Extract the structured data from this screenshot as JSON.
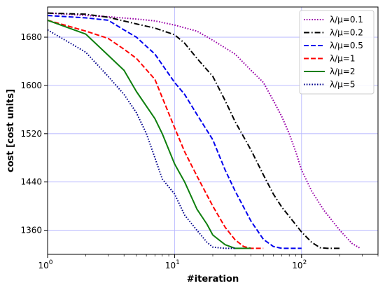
{
  "chart_data": {
    "type": "line",
    "title": "",
    "xlabel": "#iteration",
    "ylabel": "cost [cost units]",
    "x_scale": "log",
    "xlim": [
      1,
      400
    ],
    "ylim": [
      1320,
      1730
    ],
    "x_ticks": [
      {
        "value": 1,
        "base": "10",
        "exp": "0"
      },
      {
        "value": 10,
        "base": "10",
        "exp": "1"
      },
      {
        "value": 100,
        "base": "10",
        "exp": "2"
      }
    ],
    "y_ticks": [
      {
        "value": 1360,
        "label": "1360"
      },
      {
        "value": 1440,
        "label": "1440"
      },
      {
        "value": 1520,
        "label": "1520"
      },
      {
        "value": 1600,
        "label": "1600"
      },
      {
        "value": 1680,
        "label": "1680"
      }
    ],
    "grid": true,
    "legend_position": "top-right",
    "series": [
      {
        "name": "λ/μ=0.1",
        "color": "#9900a8",
        "dash": "dotted",
        "points": [
          [
            1,
            1720
          ],
          [
            2,
            1716
          ],
          [
            3,
            1714
          ],
          [
            5,
            1710
          ],
          [
            7,
            1707
          ],
          [
            10,
            1700
          ],
          [
            15,
            1690
          ],
          [
            20,
            1675
          ],
          [
            30,
            1652
          ],
          [
            40,
            1625
          ],
          [
            50,
            1605
          ],
          [
            60,
            1575
          ],
          [
            70,
            1548
          ],
          [
            80,
            1520
          ],
          [
            90,
            1490
          ],
          [
            100,
            1460
          ],
          [
            120,
            1425
          ],
          [
            150,
            1393
          ],
          [
            200,
            1360
          ],
          [
            250,
            1338
          ],
          [
            290,
            1330
          ]
        ]
      },
      {
        "name": "λ/μ=0.2",
        "color": "#000000",
        "dash": "dashdot",
        "points": [
          [
            1,
            1720
          ],
          [
            2,
            1718
          ],
          [
            3,
            1713
          ],
          [
            5,
            1702
          ],
          [
            7,
            1695
          ],
          [
            10,
            1684
          ],
          [
            12,
            1670
          ],
          [
            15,
            1645
          ],
          [
            20,
            1615
          ],
          [
            25,
            1575
          ],
          [
            30,
            1540
          ],
          [
            40,
            1493
          ],
          [
            50,
            1452
          ],
          [
            60,
            1420
          ],
          [
            70,
            1398
          ],
          [
            80,
            1383
          ],
          [
            100,
            1357
          ],
          [
            120,
            1340
          ],
          [
            140,
            1331
          ],
          [
            160,
            1330
          ],
          [
            200,
            1330
          ]
        ]
      },
      {
        "name": "λ/μ=0.5",
        "color": "#0000ee",
        "dash": "dashed",
        "points": [
          [
            1,
            1716
          ],
          [
            2,
            1712
          ],
          [
            3,
            1708
          ],
          [
            4,
            1692
          ],
          [
            5,
            1680
          ],
          [
            7,
            1652
          ],
          [
            10,
            1605
          ],
          [
            12,
            1585
          ],
          [
            15,
            1552
          ],
          [
            20,
            1510
          ],
          [
            25,
            1460
          ],
          [
            30,
            1425
          ],
          [
            40,
            1375
          ],
          [
            50,
            1345
          ],
          [
            60,
            1333
          ],
          [
            70,
            1330
          ],
          [
            100,
            1330
          ]
        ]
      },
      {
        "name": "λ/μ=1",
        "color": "#ff0000",
        "dash": "dashed",
        "points": [
          [
            1,
            1708
          ],
          [
            2,
            1690
          ],
          [
            3,
            1678
          ],
          [
            4,
            1660
          ],
          [
            5,
            1645
          ],
          [
            7,
            1610
          ],
          [
            8,
            1580
          ],
          [
            10,
            1530
          ],
          [
            12,
            1490
          ],
          [
            15,
            1450
          ],
          [
            20,
            1400
          ],
          [
            25,
            1365
          ],
          [
            30,
            1344
          ],
          [
            35,
            1333
          ],
          [
            40,
            1330
          ],
          [
            50,
            1330
          ]
        ]
      },
      {
        "name": "λ/μ=2",
        "color": "#0e7f0e",
        "dash": "solid",
        "points": [
          [
            1,
            1708
          ],
          [
            2,
            1685
          ],
          [
            3,
            1650
          ],
          [
            4,
            1625
          ],
          [
            5,
            1590
          ],
          [
            7,
            1545
          ],
          [
            8,
            1520
          ],
          [
            10,
            1470
          ],
          [
            12,
            1440
          ],
          [
            15,
            1395
          ],
          [
            18,
            1370
          ],
          [
            20,
            1352
          ],
          [
            25,
            1336
          ],
          [
            30,
            1330
          ],
          [
            40,
            1330
          ]
        ]
      },
      {
        "name": "λ/μ=5",
        "color": "#00008b",
        "dash": "dotted",
        "points": [
          [
            1,
            1692
          ],
          [
            2,
            1655
          ],
          [
            3,
            1615
          ],
          [
            4,
            1585
          ],
          [
            5,
            1555
          ],
          [
            6,
            1520
          ],
          [
            7,
            1480
          ],
          [
            8,
            1445
          ],
          [
            10,
            1420
          ],
          [
            12,
            1385
          ],
          [
            15,
            1360
          ],
          [
            18,
            1340
          ],
          [
            20,
            1332
          ],
          [
            25,
            1330
          ],
          [
            30,
            1330
          ]
        ]
      }
    ]
  }
}
